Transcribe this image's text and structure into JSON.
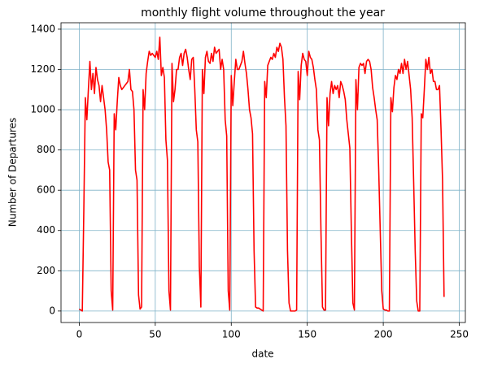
{
  "chart_data": {
    "type": "line",
    "title": "monthly flight volume throughout the year",
    "x_label": "date",
    "y_label": "Number of Departures",
    "x": [
      0,
      1,
      2,
      3,
      4,
      5,
      6,
      7,
      8,
      9,
      10,
      11,
      12,
      13,
      14,
      15,
      16,
      17,
      18,
      19,
      20,
      21,
      22,
      23,
      24,
      25,
      26,
      27,
      28,
      29,
      30,
      31,
      32,
      33,
      34,
      35,
      36,
      37,
      38,
      39,
      40,
      41,
      42,
      43,
      44,
      45,
      46,
      47,
      48,
      49,
      50,
      51,
      52,
      53,
      54,
      55,
      56,
      57,
      58,
      59,
      60,
      61,
      62,
      63,
      64,
      65,
      66,
      67,
      68,
      69,
      70,
      71,
      72,
      73,
      74,
      75,
      76,
      77,
      78,
      79,
      80,
      81,
      82,
      83,
      84,
      85,
      86,
      87,
      88,
      89,
      90,
      91,
      92,
      93,
      94,
      95,
      96,
      97,
      98,
      99,
      100,
      101,
      102,
      103,
      104,
      105,
      106,
      107,
      108,
      109,
      110,
      111,
      112,
      113,
      114,
      115,
      116,
      117,
      118,
      119,
      120,
      121,
      122,
      123,
      124,
      125,
      126,
      127,
      128,
      129,
      130,
      131,
      132,
      133,
      134,
      135,
      136,
      137,
      138,
      139,
      140,
      141,
      142,
      143,
      144,
      145,
      146,
      147,
      148,
      149,
      150,
      151,
      152,
      153,
      154,
      155,
      156,
      157,
      158,
      159,
      160,
      161,
      162,
      163,
      164,
      165,
      166,
      167,
      168,
      169,
      170,
      171,
      172,
      173,
      174,
      175,
      176,
      177,
      178,
      179,
      180,
      181,
      182,
      183,
      184,
      185,
      186,
      187,
      188,
      189,
      190,
      191,
      192,
      193,
      194,
      195,
      196,
      197,
      198,
      199,
      200,
      201,
      202,
      203,
      204,
      205,
      206,
      207,
      208,
      209,
      210,
      211,
      212,
      213,
      214,
      215,
      216,
      217,
      218,
      219,
      220,
      221,
      222,
      223,
      224,
      225,
      226,
      227,
      228,
      229,
      230,
      231,
      232,
      233,
      234,
      235,
      236,
      237,
      238,
      239,
      240
    ],
    "series": [
      {
        "name": "departures",
        "color": "#ff0000",
        "values": [
          10,
          5,
          0,
          500,
          1060,
          950,
          1100,
          1240,
          1100,
          1180,
          1080,
          1210,
          1150,
          1120,
          1040,
          1120,
          1060,
          1000,
          900,
          740,
          700,
          100,
          5,
          980,
          900,
          1040,
          1160,
          1120,
          1100,
          1110,
          1120,
          1130,
          1140,
          1200,
          1100,
          1090,
          1000,
          700,
          650,
          80,
          10,
          20,
          1100,
          1000,
          1180,
          1240,
          1290,
          1270,
          1280,
          1270,
          1260,
          1290,
          1250,
          1360,
          1170,
          1210,
          1160,
          850,
          750,
          100,
          5,
          1230,
          1040,
          1100,
          1200,
          1200,
          1260,
          1280,
          1220,
          1280,
          1300,
          1260,
          1200,
          1150,
          1250,
          1260,
          1100,
          900,
          840,
          220,
          20,
          1200,
          1080,
          1260,
          1290,
          1240,
          1230,
          1280,
          1240,
          1310,
          1280,
          1290,
          1300,
          1200,
          1250,
          1200,
          950,
          870,
          100,
          5,
          1170,
          1020,
          1140,
          1250,
          1200,
          1200,
          1220,
          1240,
          1290,
          1230,
          1180,
          1100,
          1000,
          960,
          880,
          300,
          20,
          15,
          15,
          10,
          5,
          0,
          1140,
          1060,
          1220,
          1240,
          1260,
          1250,
          1280,
          1260,
          1310,
          1290,
          1330,
          1310,
          1250,
          1060,
          920,
          300,
          40,
          0,
          0,
          0,
          0,
          5,
          1190,
          1050,
          1220,
          1280,
          1250,
          1240,
          1170,
          1290,
          1260,
          1250,
          1210,
          1150,
          1100,
          900,
          850,
          400,
          20,
          5,
          5,
          1060,
          920,
          1080,
          1140,
          1080,
          1120,
          1100,
          1120,
          1060,
          1140,
          1120,
          1090,
          1050,
          950,
          880,
          810,
          400,
          40,
          5,
          1150,
          1000,
          1210,
          1230,
          1220,
          1230,
          1180,
          1240,
          1250,
          1240,
          1200,
          1110,
          1060,
          1000,
          950,
          700,
          400,
          100,
          10,
          5,
          5,
          0,
          0,
          1060,
          990,
          1110,
          1170,
          1150,
          1200,
          1180,
          1230,
          1180,
          1250,
          1200,
          1240,
          1170,
          1100,
          960,
          640,
          300,
          50,
          0,
          0,
          980,
          960,
          1100,
          1250,
          1200,
          1260,
          1180,
          1200,
          1140,
          1140,
          1100,
          1100,
          1120,
          900,
          650,
          70
        ]
      }
    ],
    "xlim": [
      -12,
      254
    ],
    "xticks": [
      0,
      50,
      100,
      150,
      200,
      250
    ],
    "ylim": [
      -57,
      1432
    ],
    "yticks": [
      0,
      200,
      400,
      600,
      800,
      1000,
      1200,
      1400
    ],
    "grid": true,
    "grid_color": "#7fb2c8"
  }
}
